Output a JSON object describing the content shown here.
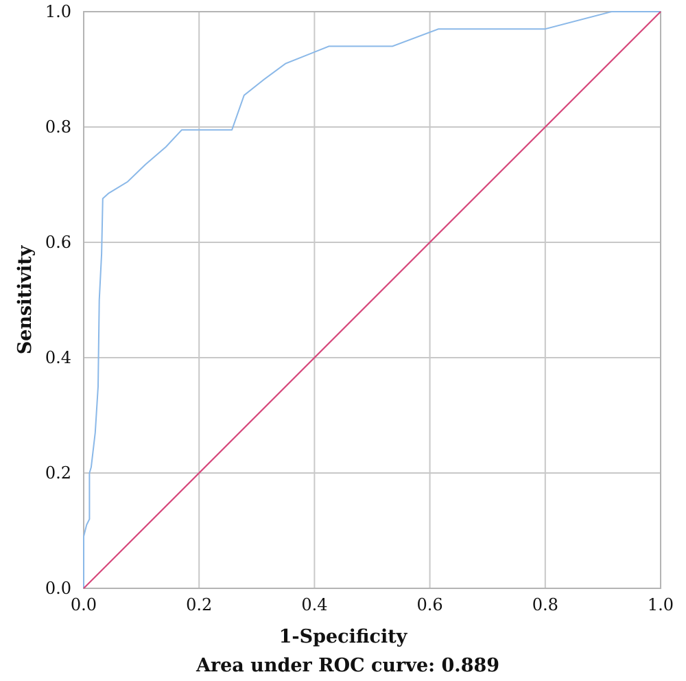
{
  "chart_data": {
    "type": "line",
    "xlabel": "1-Specificity",
    "ylabel": "Sensitivity",
    "caption": "Area under ROC curve: 0.889",
    "xlim": [
      0,
      1
    ],
    "ylim": [
      0,
      1
    ],
    "grid": true,
    "x_ticks": [
      "0.0",
      "0.2",
      "0.4",
      "0.6",
      "0.8",
      "1.0"
    ],
    "y_ticks": [
      "0.0",
      "0.2",
      "0.4",
      "0.6",
      "0.8",
      "1.0"
    ],
    "series": [
      {
        "color": "#8ab8e8",
        "points": [
          [
            0.0,
            0.0
          ],
          [
            0.0,
            0.09
          ],
          [
            0.005,
            0.11
          ],
          [
            0.01,
            0.12
          ],
          [
            0.01,
            0.2
          ],
          [
            0.013,
            0.21
          ],
          [
            0.02,
            0.27
          ],
          [
            0.025,
            0.35
          ],
          [
            0.027,
            0.5
          ],
          [
            0.031,
            0.58
          ],
          [
            0.033,
            0.676
          ],
          [
            0.043,
            0.685
          ],
          [
            0.076,
            0.705
          ],
          [
            0.107,
            0.735
          ],
          [
            0.142,
            0.765
          ],
          [
            0.17,
            0.795
          ],
          [
            0.207,
            0.795
          ],
          [
            0.257,
            0.795
          ],
          [
            0.278,
            0.855
          ],
          [
            0.312,
            0.882
          ],
          [
            0.35,
            0.91
          ],
          [
            0.395,
            0.928
          ],
          [
            0.425,
            0.94
          ],
          [
            0.535,
            0.94
          ],
          [
            0.615,
            0.97
          ],
          [
            0.8,
            0.97
          ],
          [
            0.915,
            1.0
          ],
          [
            1.0,
            1.0
          ]
        ]
      },
      {
        "color": "#d6467a",
        "points": [
          [
            0,
            0
          ],
          [
            1,
            1
          ]
        ]
      }
    ]
  }
}
